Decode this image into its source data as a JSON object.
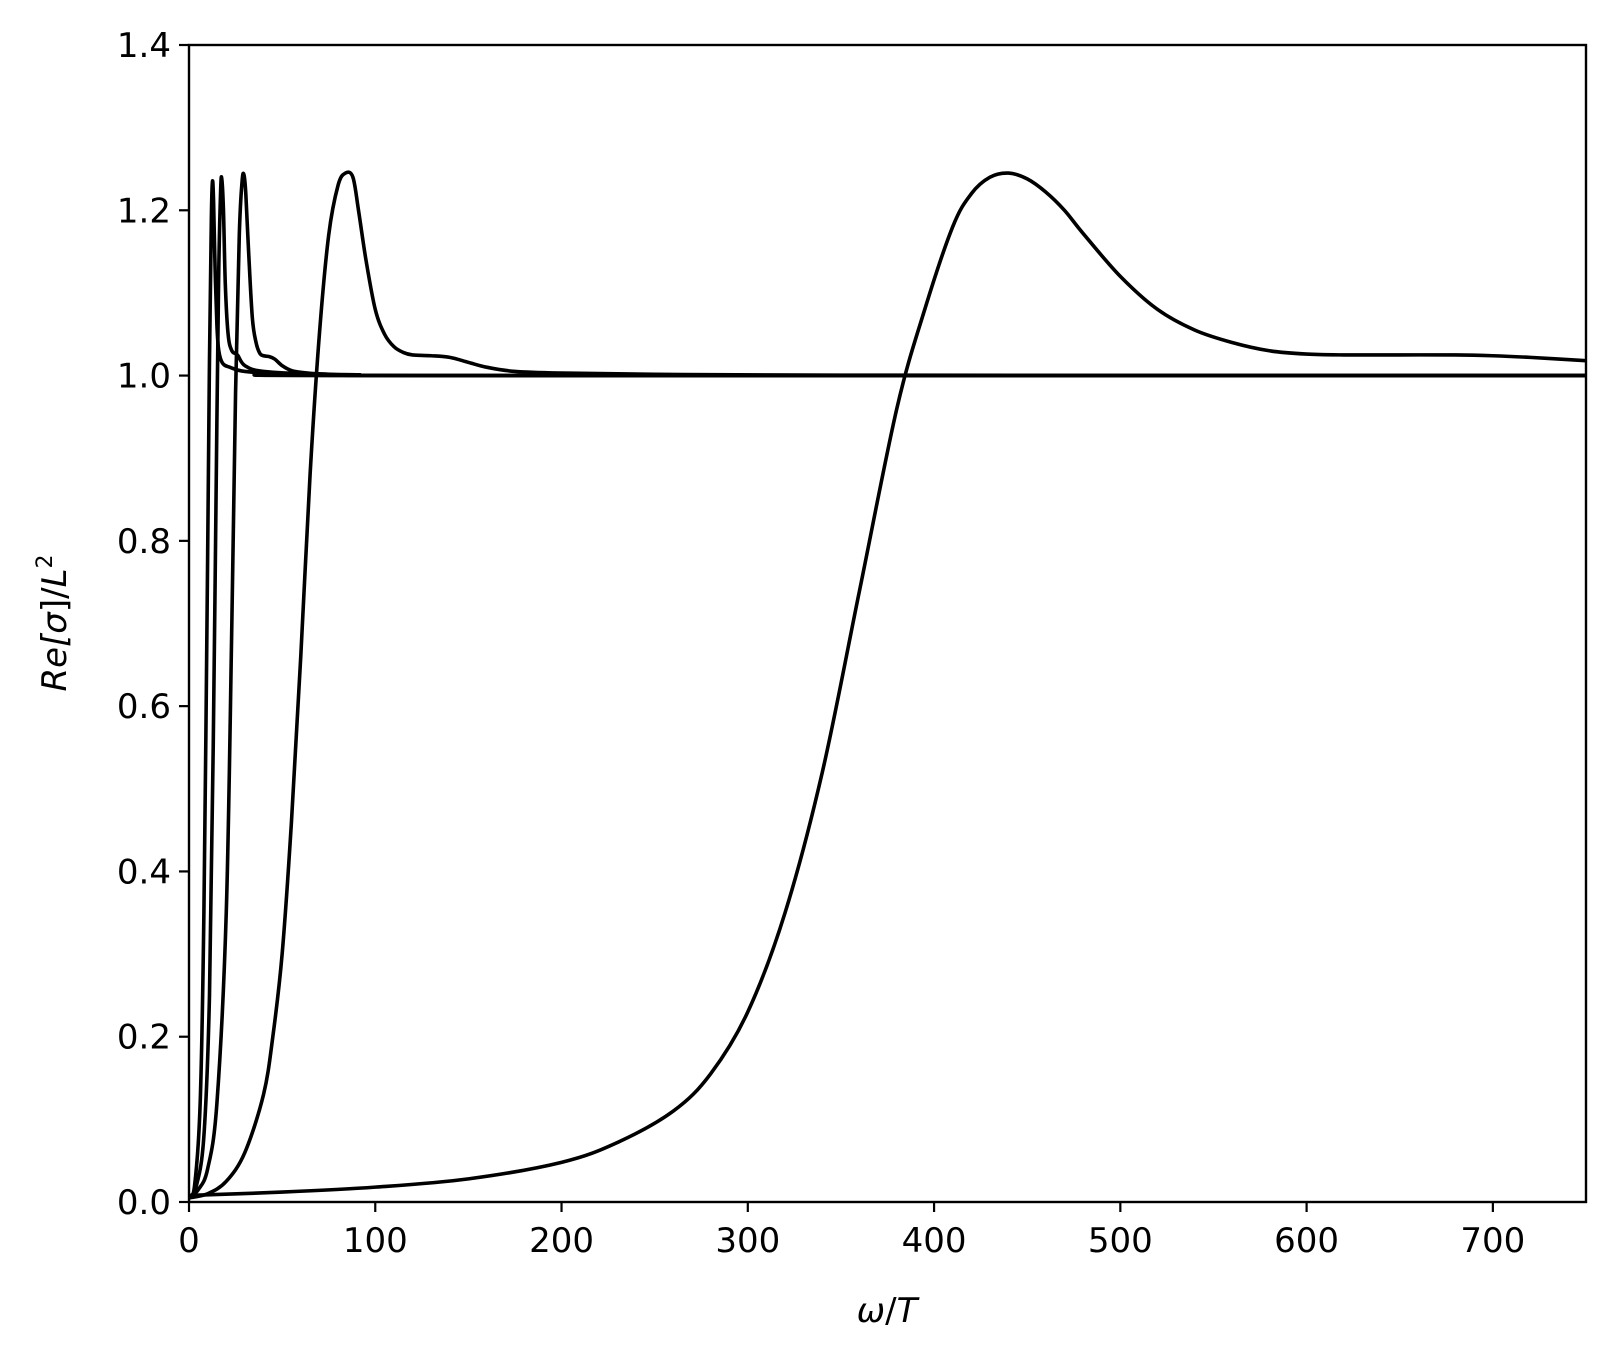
{
  "chart_data": {
    "type": "line",
    "title": "",
    "xlabel_parts": [
      "ω",
      "/",
      "T"
    ],
    "ylabel_parts": [
      "Re[",
      "σ",
      "]/",
      "L",
      "2"
    ],
    "xlim": [
      0,
      750
    ],
    "ylim": [
      0,
      1.4
    ],
    "xticks": [
      0,
      100,
      200,
      300,
      400,
      500,
      600,
      700
    ],
    "xtick_labels": [
      "0",
      "100",
      "200",
      "300",
      "400",
      "500",
      "600",
      "700"
    ],
    "yticks": [
      0.0,
      0.2,
      0.4,
      0.6,
      0.8,
      1.0,
      1.2,
      1.4
    ],
    "ytick_labels": [
      "0.0",
      "0.2",
      "0.4",
      "0.6",
      "0.8",
      "1.0",
      "1.2",
      "1.4"
    ],
    "grid": false,
    "line_color": "#000000",
    "series": [
      {
        "x": [
          0,
          3,
          6,
          8,
          10,
          11,
          12,
          12.6,
          13.2,
          14,
          15,
          16,
          18,
          22,
          30,
          50,
          100,
          750
        ],
        "y": [
          0.005,
          0.02,
          0.12,
          0.35,
          0.78,
          1.02,
          1.19,
          1.235,
          1.21,
          1.13,
          1.06,
          1.03,
          1.015,
          1.01,
          1.005,
          1.002,
          1.0,
          1.0
        ]
      },
      {
        "x": [
          0,
          4,
          8,
          11,
          13,
          15,
          16,
          17,
          17.6,
          18.5,
          19.5,
          21,
          23,
          26,
          30,
          40,
          70,
          150,
          750
        ],
        "y": [
          0.005,
          0.02,
          0.08,
          0.25,
          0.55,
          0.95,
          1.13,
          1.225,
          1.238,
          1.2,
          1.11,
          1.05,
          1.03,
          1.025,
          1.012,
          1.005,
          1.002,
          1.0,
          1.0
        ]
      },
      {
        "x": [
          0,
          5,
          10,
          15,
          20,
          23,
          25,
          27,
          28.5,
          29.5,
          30.5,
          32,
          34,
          36,
          38,
          40,
          43,
          46,
          50,
          55,
          60,
          70,
          90,
          150,
          750
        ],
        "y": [
          0.005,
          0.015,
          0.04,
          0.12,
          0.35,
          0.7,
          0.98,
          1.17,
          1.235,
          1.243,
          1.22,
          1.15,
          1.07,
          1.04,
          1.027,
          1.024,
          1.023,
          1.02,
          1.012,
          1.006,
          1.004,
          1.002,
          1.001,
          1.0,
          1.0
        ]
      },
      {
        "x": [
          0,
          10,
          20,
          30,
          40,
          45,
          50,
          55,
          60,
          65,
          70,
          75,
          80,
          84,
          88,
          91,
          95,
          100,
          105,
          110,
          115,
          120,
          130,
          140,
          150,
          160,
          175,
          200,
          250,
          350,
          750
        ],
        "y": [
          0.005,
          0.01,
          0.025,
          0.06,
          0.13,
          0.2,
          0.3,
          0.46,
          0.66,
          0.88,
          1.05,
          1.17,
          1.23,
          1.245,
          1.24,
          1.2,
          1.14,
          1.08,
          1.05,
          1.035,
          1.028,
          1.025,
          1.024,
          1.022,
          1.016,
          1.01,
          1.005,
          1.003,
          1.0015,
          1.0005,
          1.0
        ]
      },
      {
        "x": [
          0,
          50,
          100,
          150,
          200,
          230,
          260,
          280,
          300,
          320,
          340,
          360,
          380,
          395,
          410,
          420,
          430,
          440,
          450,
          460,
          470,
          480,
          500,
          520,
          540,
          560,
          580,
          600,
          620,
          650,
          680,
          700,
          720,
          750
        ],
        "y": [
          0.008,
          0.012,
          0.018,
          0.028,
          0.048,
          0.072,
          0.11,
          0.155,
          0.23,
          0.35,
          0.52,
          0.74,
          0.96,
          1.08,
          1.18,
          1.22,
          1.24,
          1.245,
          1.238,
          1.222,
          1.2,
          1.172,
          1.12,
          1.08,
          1.055,
          1.04,
          1.03,
          1.026,
          1.025,
          1.025,
          1.025,
          1.024,
          1.022,
          1.018
        ]
      }
    ]
  }
}
